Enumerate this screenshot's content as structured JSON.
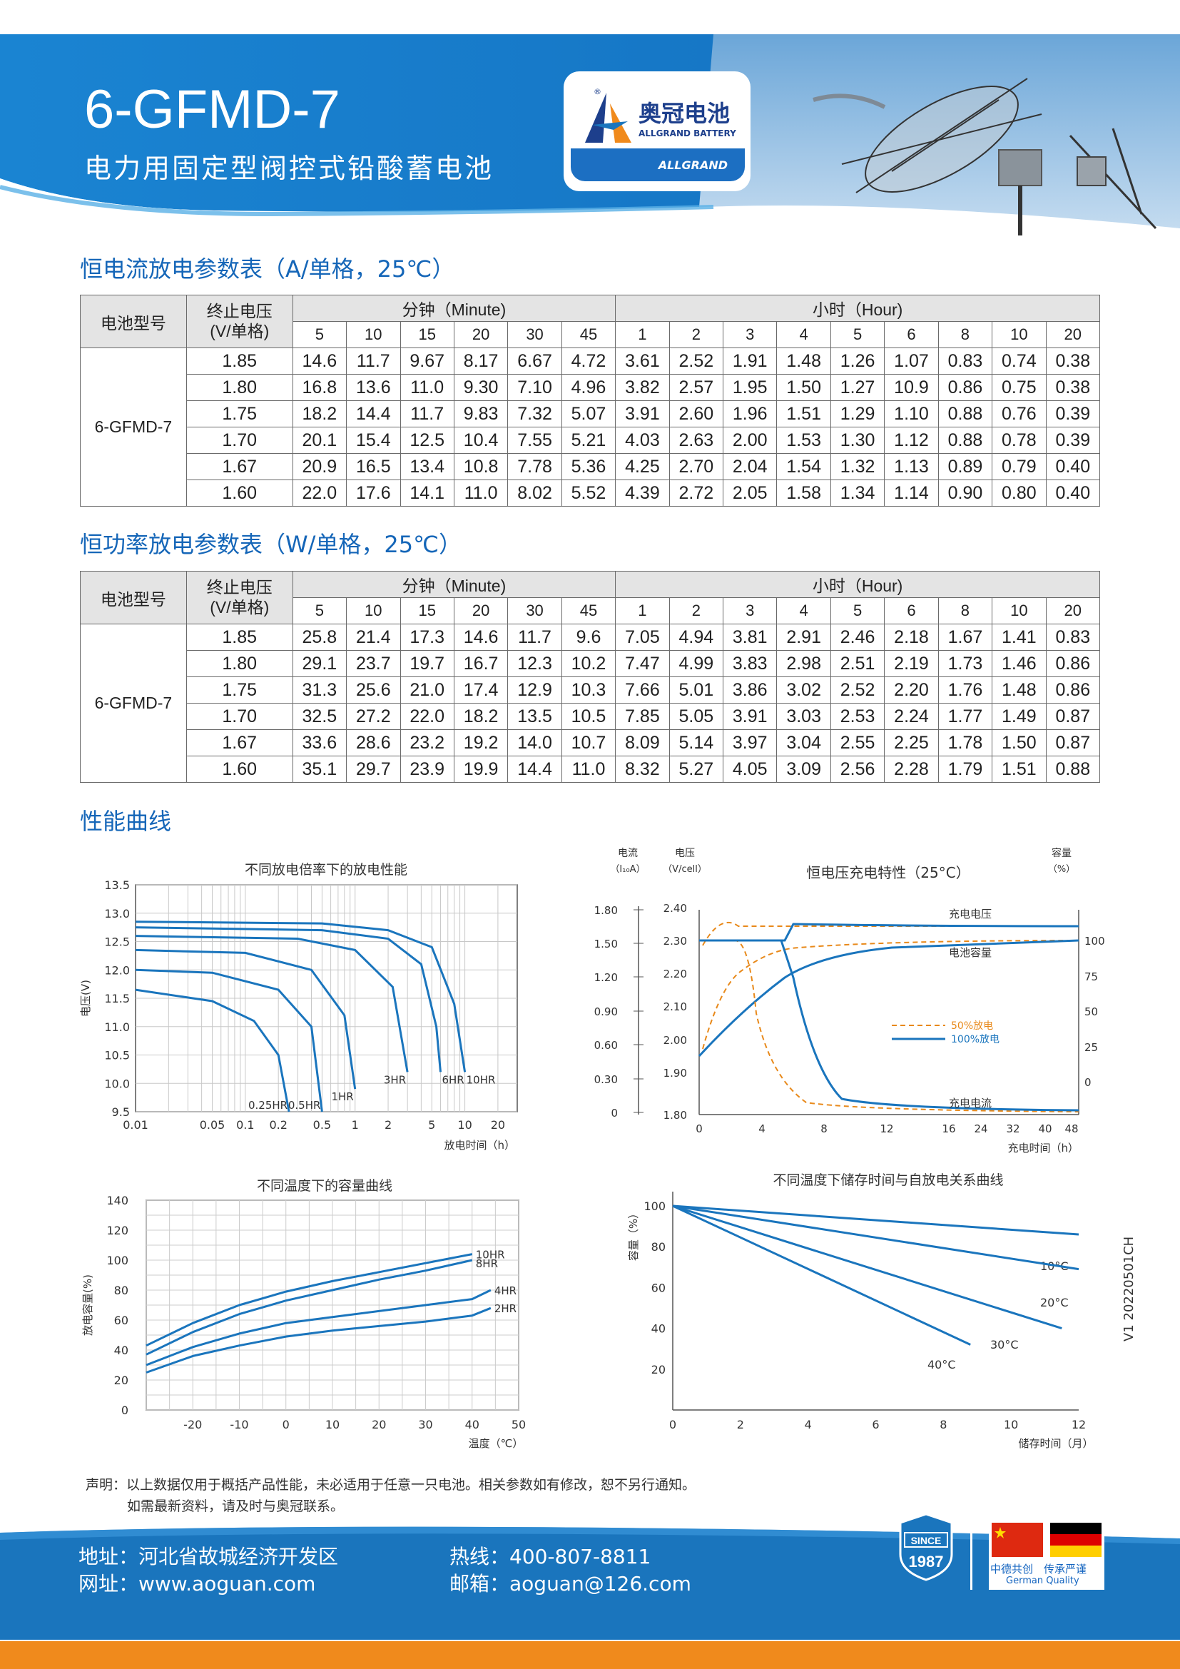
{
  "header": {
    "model": "6-GFMD-7",
    "subtitle": "电力用固定型阀控式铅酸蓄电池",
    "logo_cn": "奥冠电池",
    "logo_en": "ALLGRAND BATTERY",
    "logo_band": "ALLGRAND",
    "logo_reg": "®"
  },
  "table_headers": {
    "model_col": "电池型号",
    "voltage_col_1": "终止电压",
    "voltage_col_2": "(V/单格)",
    "minute_group": "分钟（Minute)",
    "hour_group": "小时（Hour)",
    "minutes": [
      "5",
      "10",
      "15",
      "20",
      "30",
      "45"
    ],
    "hours": [
      "1",
      "2",
      "3",
      "4",
      "5",
      "6",
      "8",
      "10",
      "20"
    ]
  },
  "current_table": {
    "title": "恒电流放电参数表（A/单格，25℃）",
    "model": "6-GFMD-7",
    "rows": [
      {
        "v": "1.85",
        "vals": [
          "14.6",
          "11.7",
          "9.67",
          "8.17",
          "6.67",
          "4.72",
          "3.61",
          "2.52",
          "1.91",
          "1.48",
          "1.26",
          "1.07",
          "0.83",
          "0.74",
          "0.38"
        ]
      },
      {
        "v": "1.80",
        "vals": [
          "16.8",
          "13.6",
          "11.0",
          "9.30",
          "7.10",
          "4.96",
          "3.82",
          "2.57",
          "1.95",
          "1.50",
          "1.27",
          "10.9",
          "0.86",
          "0.75",
          "0.38"
        ]
      },
      {
        "v": "1.75",
        "vals": [
          "18.2",
          "14.4",
          "11.7",
          "9.83",
          "7.32",
          "5.07",
          "3.91",
          "2.60",
          "1.96",
          "1.51",
          "1.29",
          "1.10",
          "0.88",
          "0.76",
          "0.39"
        ]
      },
      {
        "v": "1.70",
        "vals": [
          "20.1",
          "15.4",
          "12.5",
          "10.4",
          "7.55",
          "5.21",
          "4.03",
          "2.63",
          "2.00",
          "1.53",
          "1.30",
          "1.12",
          "0.88",
          "0.78",
          "0.39"
        ]
      },
      {
        "v": "1.67",
        "vals": [
          "20.9",
          "16.5",
          "13.4",
          "10.8",
          "7.78",
          "5.36",
          "4.25",
          "2.70",
          "2.04",
          "1.54",
          "1.32",
          "1.13",
          "0.89",
          "0.79",
          "0.40"
        ]
      },
      {
        "v": "1.60",
        "vals": [
          "22.0",
          "17.6",
          "14.1",
          "11.0",
          "8.02",
          "5.52",
          "4.39",
          "2.72",
          "2.05",
          "1.58",
          "1.34",
          "1.14",
          "0.90",
          "0.80",
          "0.40"
        ]
      }
    ]
  },
  "power_table": {
    "title": "恒功率放电参数表（W/单格，25℃）",
    "model": "6-GFMD-7",
    "rows": [
      {
        "v": "1.85",
        "vals": [
          "25.8",
          "21.4",
          "17.3",
          "14.6",
          "11.7",
          "9.6",
          "7.05",
          "4.94",
          "3.81",
          "2.91",
          "2.46",
          "2.18",
          "1.67",
          "1.41",
          "0.83"
        ]
      },
      {
        "v": "1.80",
        "vals": [
          "29.1",
          "23.7",
          "19.7",
          "16.7",
          "12.3",
          "10.2",
          "7.47",
          "4.99",
          "3.83",
          "2.98",
          "2.51",
          "2.19",
          "1.73",
          "1.46",
          "0.86"
        ]
      },
      {
        "v": "1.75",
        "vals": [
          "31.3",
          "25.6",
          "21.0",
          "17.4",
          "12.9",
          "10.3",
          "7.66",
          "5.01",
          "3.86",
          "3.02",
          "2.52",
          "2.20",
          "1.76",
          "1.48",
          "0.86"
        ]
      },
      {
        "v": "1.70",
        "vals": [
          "32.5",
          "27.2",
          "22.0",
          "18.2",
          "13.5",
          "10.5",
          "7.85",
          "5.05",
          "3.91",
          "3.03",
          "2.53",
          "2.24",
          "1.77",
          "1.49",
          "0.87"
        ]
      },
      {
        "v": "1.67",
        "vals": [
          "33.6",
          "28.6",
          "23.2",
          "19.2",
          "14.0",
          "10.7",
          "8.09",
          "5.14",
          "3.97",
          "3.04",
          "2.55",
          "2.25",
          "1.78",
          "1.50",
          "0.87"
        ]
      },
      {
        "v": "1.60",
        "vals": [
          "35.1",
          "29.7",
          "23.9",
          "19.9",
          "14.4",
          "11.0",
          "8.32",
          "5.27",
          "4.05",
          "3.09",
          "2.56",
          "2.28",
          "1.79",
          "1.51",
          "0.88"
        ]
      }
    ]
  },
  "curves_title": "性能曲线",
  "chart_data": [
    {
      "type": "line",
      "title": "不同放电倍率下的放电性能",
      "xlabel": "放电时间（h）",
      "ylabel": "电压(V)",
      "xscale": "log",
      "x_ticks": [
        "0.01",
        "0.05",
        "0.1",
        "0.2",
        "0.5",
        "1",
        "2",
        "5",
        "10",
        "20"
      ],
      "y_ticks": [
        "13.5",
        "13.0",
        "12.5",
        "12.0",
        "11.5",
        "11.0",
        "10.5",
        "10.0",
        "9.5"
      ],
      "ylim": [
        9.5,
        13.5
      ],
      "grid": true,
      "series": [
        {
          "name": "10HR",
          "x": [
            0.01,
            0.5,
            2,
            5,
            8,
            10
          ],
          "y": [
            12.85,
            12.82,
            12.7,
            12.4,
            11.4,
            10.2
          ]
        },
        {
          "name": "6HR",
          "x": [
            0.01,
            0.5,
            2,
            4,
            5.5,
            6
          ],
          "y": [
            12.75,
            12.7,
            12.55,
            12.1,
            11.0,
            10.2
          ]
        },
        {
          "name": "3HR",
          "x": [
            0.01,
            0.3,
            1,
            2.2,
            3
          ],
          "y": [
            12.6,
            12.55,
            12.35,
            11.7,
            10.2
          ]
        },
        {
          "name": "1HR",
          "x": [
            0.01,
            0.1,
            0.4,
            0.8,
            1
          ],
          "y": [
            12.35,
            12.3,
            12.0,
            11.2,
            9.9
          ]
        },
        {
          "name": "0.5HR",
          "x": [
            0.01,
            0.05,
            0.2,
            0.4,
            0.5
          ],
          "y": [
            12.0,
            11.95,
            11.65,
            11.0,
            9.5
          ]
        },
        {
          "name": "0.25HR",
          "x": [
            0.01,
            0.05,
            0.12,
            0.2,
            0.25
          ],
          "y": [
            11.65,
            11.45,
            11.1,
            10.5,
            9.5
          ]
        }
      ]
    },
    {
      "type": "line",
      "title": "恒电压充电特性（25°C）",
      "xlabel": "充电时间（h）",
      "left_axis_1": {
        "label_1": "电流",
        "label_2": "（I₁₀A）",
        "ticks": [
          "1.80",
          "1.50",
          "1.20",
          "0.90",
          "0.60",
          "0.30",
          "0"
        ]
      },
      "left_axis_2": {
        "label_1": "电压",
        "label_2": "（V/cell）",
        "ticks": [
          "2.40",
          "2.30",
          "2.20",
          "2.10",
          "2.00",
          "1.90",
          "1.80"
        ]
      },
      "right_axis": {
        "label_1": "容量",
        "label_2": "（%）",
        "ticks": [
          "100",
          "75",
          "50",
          "25",
          "0"
        ]
      },
      "x_ticks": [
        "0",
        "4",
        "8",
        "12",
        "16",
        "24",
        "32",
        "40",
        "48"
      ],
      "annotations": [
        "充电电压",
        "电池容量",
        "充电电流"
      ],
      "legend": "right",
      "series": [
        {
          "name": "50%放电",
          "style": "dashed",
          "color": "#e8891a"
        },
        {
          "name": "100%放电",
          "style": "solid",
          "color": "#1a75bd"
        }
      ]
    },
    {
      "type": "line",
      "title": "不同温度下的容量曲线",
      "xlabel": "温度（℃）",
      "ylabel": "放电容量(%)",
      "x_ticks": [
        "-20",
        "-10",
        "0",
        "10",
        "20",
        "30",
        "40",
        "50"
      ],
      "y_ticks": [
        "140",
        "120",
        "100",
        "80",
        "60",
        "40",
        "20",
        "0"
      ],
      "xlim": [
        -30,
        50
      ],
      "ylim": [
        0,
        140
      ],
      "grid": true,
      "series": [
        {
          "name": "10HR",
          "x": [
            -30,
            -20,
            -10,
            0,
            10,
            20,
            30,
            40
          ],
          "y": [
            43,
            58,
            70,
            79,
            86,
            92,
            98,
            104
          ]
        },
        {
          "name": "8HR",
          "x": [
            -30,
            -20,
            -10,
            0,
            10,
            20,
            30,
            40
          ],
          "y": [
            37,
            52,
            64,
            73,
            80,
            87,
            93,
            100
          ]
        },
        {
          "name": "4HR",
          "x": [
            -30,
            -20,
            -10,
            0,
            10,
            20,
            30,
            40,
            44
          ],
          "y": [
            30,
            42,
            51,
            58,
            62,
            66,
            70,
            74,
            80
          ]
        },
        {
          "name": "2HR",
          "x": [
            -30,
            -20,
            -10,
            0,
            10,
            20,
            30,
            40,
            44
          ],
          "y": [
            25,
            36,
            43,
            49,
            53,
            56,
            59,
            63,
            68
          ]
        }
      ]
    },
    {
      "type": "line",
      "title": "不同温度下储存时间与自放电关系曲线",
      "xlabel": "储存时间（月）",
      "ylabel": "容量（%）",
      "x_ticks": [
        "0",
        "2",
        "4",
        "6",
        "8",
        "10",
        "12"
      ],
      "y_ticks": [
        "100",
        "80",
        "60",
        "40",
        "20"
      ],
      "xlim": [
        0,
        12
      ],
      "ylim": [
        0,
        100
      ],
      "series": [
        {
          "name": "10°C",
          "x": [
            0,
            12
          ],
          "y": [
            100,
            86
          ]
        },
        {
          "name": "20°C",
          "x": [
            0,
            12
          ],
          "y": [
            100,
            69
          ]
        },
        {
          "name": "30°C",
          "x": [
            0,
            11.5
          ],
          "y": [
            100,
            40
          ]
        },
        {
          "name": "40°C",
          "x": [
            0,
            8.8
          ],
          "y": [
            100,
            32
          ]
        }
      ]
    }
  ],
  "note": {
    "line1": "声明：以上数据仅用于概括产品性能，未必适用于任意一只电池。相关参数如有修改，恕不另行通知。",
    "line2": "如需最新资料，请及时与奥冠联系。"
  },
  "version": "V1 20220501CH",
  "footer": {
    "address": "地址：河北省故城经济开发区",
    "website": "网址：www.aoguan.com",
    "hotline": "热线：400-807-8811",
    "email": "邮箱：aoguan@126.com",
    "since_label": "SINCE",
    "since_year": "1987",
    "quality_cn": "中德共创　传承严谨",
    "quality_en": "German Quality"
  },
  "colors": {
    "brand_blue": "#1a75bd",
    "orange": "#f08a1c",
    "header_text": "#ffffff",
    "section_title": "#1566b8"
  }
}
